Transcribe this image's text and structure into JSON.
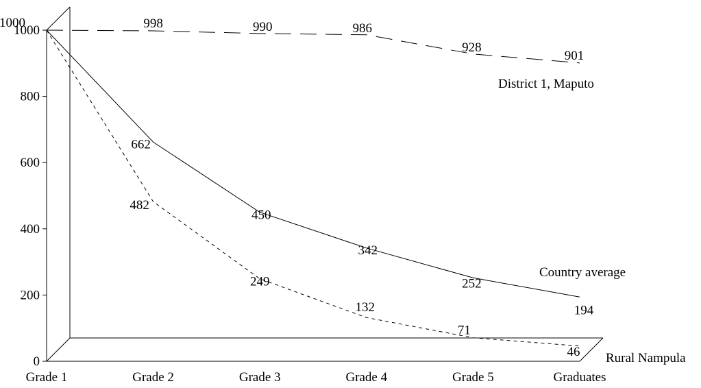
{
  "chart_data": {
    "type": "line",
    "categories": [
      "Grade 1",
      "Grade 2",
      "Grade 3",
      "Grade 4",
      "Grade 5",
      "Graduates"
    ],
    "ylim": [
      0,
      1000
    ],
    "yticks": [
      0,
      200,
      400,
      600,
      800,
      1000
    ],
    "grid": false,
    "series": [
      {
        "name": "District 1, Maputo",
        "style": "long-dash",
        "values": [
          1000,
          998,
          990,
          986,
          928,
          901
        ]
      },
      {
        "name": "Country average",
        "style": "solid",
        "values": [
          1000,
          662,
          450,
          342,
          252,
          194
        ]
      },
      {
        "name": "Rural Nampula",
        "style": "short-dash",
        "values": [
          1000,
          482,
          249,
          132,
          71,
          46
        ]
      }
    ]
  }
}
